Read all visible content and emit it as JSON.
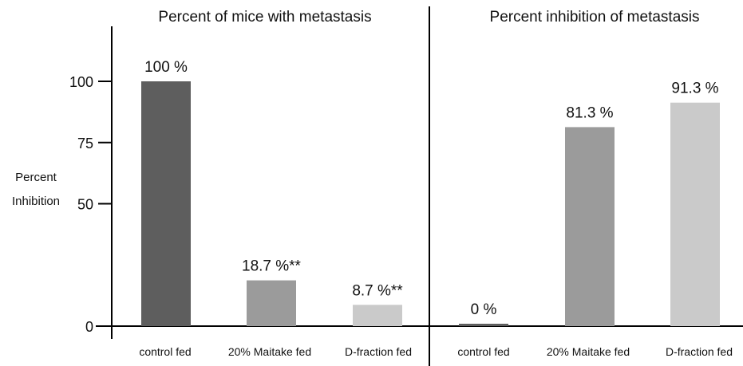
{
  "chart_data": [
    {
      "type": "bar",
      "title": "Percent of mice with metastasis",
      "ylabel": "Percent Inhibition",
      "ylabel_lines": [
        "Percent",
        "Inhibition"
      ],
      "ylim": [
        0,
        125
      ],
      "yticks": [
        0,
        50,
        75,
        100
      ],
      "grid": false,
      "categories": [
        "control fed",
        "20% Maitake fed",
        "D-fraction fed"
      ],
      "values": [
        100,
        18.7,
        8.7
      ],
      "data_labels": [
        "100 %",
        "18.7 %**",
        "8.7 %**"
      ],
      "colors": [
        "#5e5e5e",
        "#9b9b9b",
        "#cacaca"
      ]
    },
    {
      "type": "bar",
      "title": "Percent inhibition of metastasis",
      "ylim": [
        0,
        125
      ],
      "grid": false,
      "categories": [
        "control fed",
        "20% Maitake fed",
        "D-fraction fed"
      ],
      "values": [
        0,
        81.3,
        91.3
      ],
      "data_labels": [
        "0 %",
        "81.3 %",
        "91.3 %"
      ],
      "colors": [
        "#5e5e5e",
        "#9b9b9b",
        "#cacaca"
      ]
    }
  ]
}
